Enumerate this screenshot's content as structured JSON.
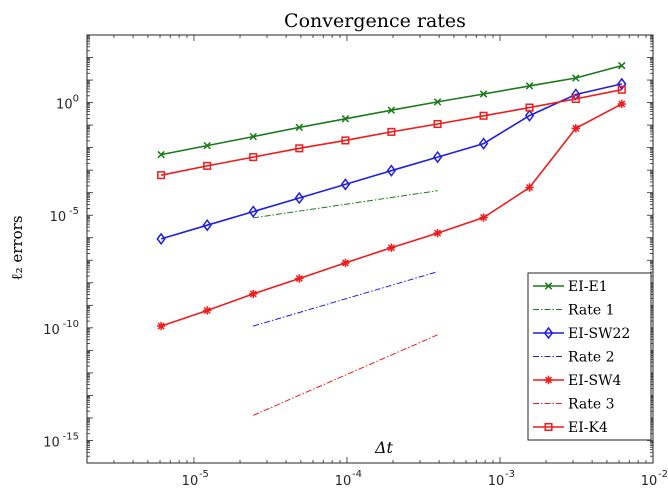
{
  "chart_data": {
    "type": "line",
    "title": "Convergence rates",
    "xlabel": "Δt",
    "ylabel": "ℓ₂ errors",
    "x_scale": "log",
    "y_scale": "log",
    "xlim": [
      2e-06,
      0.01
    ],
    "ylim": [
      1e-16,
      1000.0
    ],
    "x_ticks": [
      {
        "value": 1e-05,
        "base": "10",
        "exp": "-5"
      },
      {
        "value": 0.0001,
        "base": "10",
        "exp": "-4"
      },
      {
        "value": 0.001,
        "base": "10",
        "exp": "-3"
      },
      {
        "value": 0.01,
        "base": "10",
        "exp": "-2"
      }
    ],
    "y_ticks": [
      {
        "value": 1,
        "base": "10",
        "exp": "0"
      },
      {
        "value": 1e-05,
        "base": "10",
        "exp": "-5"
      },
      {
        "value": 1e-10,
        "base": "10",
        "exp": "-10"
      },
      {
        "value": 1e-15,
        "base": "10",
        "exp": "-15"
      }
    ],
    "grid": false,
    "legend_position": "bottom-right",
    "series": [
      {
        "name": "EI-E1",
        "color": "#1a7a1a",
        "marker": "x",
        "style": "solid",
        "x": [
          6.1e-06,
          1.22e-05,
          2.44e-05,
          4.88e-05,
          9.77e-05,
          0.000195,
          0.000391,
          0.000781,
          0.00156,
          0.00313,
          0.00625
        ],
        "y": [
          0.0049,
          0.0123,
          0.0309,
          0.0794,
          0.191,
          0.457,
          1.07,
          2.4,
          5.5,
          12.3,
          43.7
        ]
      },
      {
        "name": "Rate 1",
        "color": "#1a7a1a",
        "marker": "none",
        "style": "dashdot",
        "x": [
          2.44e-05,
          0.000391
        ],
        "y": [
          7.6e-06,
          0.000123
        ]
      },
      {
        "name": "EI-SW22",
        "color": "#1f1fdc",
        "marker": "diamond",
        "style": "solid",
        "x": [
          6.1e-06,
          1.22e-05,
          2.44e-05,
          4.88e-05,
          9.77e-05,
          0.000195,
          0.000391,
          0.000781,
          0.00156,
          0.00313,
          0.00625
        ],
        "y": [
          8.9e-07,
          3.6e-06,
          1.45e-05,
          5.8e-05,
          0.000234,
          0.00095,
          0.0038,
          0.0151,
          0.263,
          2.29,
          6.76
        ]
      },
      {
        "name": "Rate 2",
        "color": "#1f1fdc",
        "marker": "none",
        "style": "dashdot",
        "x": [
          2.44e-05,
          0.000391
        ],
        "y": [
          1.2e-10,
          3.1e-08
        ]
      },
      {
        "name": "EI-SW4",
        "color": "#ee1c1c",
        "marker": "star",
        "style": "solid",
        "x": [
          6.1e-06,
          1.22e-05,
          2.44e-05,
          4.88e-05,
          9.77e-05,
          0.000195,
          0.000391,
          0.000781,
          0.00156,
          0.00313,
          0.00625
        ],
        "y": [
          1.2e-10,
          5.9e-10,
          3.2e-09,
          1.55e-08,
          7.6e-08,
          3.6e-07,
          1.6e-06,
          7.9e-06,
          0.00017,
          0.072,
          0.87
        ]
      },
      {
        "name": "Rate 3",
        "color": "#ee1c1c",
        "marker": "none",
        "style": "dashdot",
        "x": [
          2.44e-05,
          0.000391
        ],
        "y": [
          1.3e-14,
          4.9e-11
        ]
      },
      {
        "name": "EI-K4",
        "color": "#ee1c1c",
        "marker": "square",
        "style": "solid",
        "x": [
          6.1e-06,
          1.22e-05,
          2.44e-05,
          4.88e-05,
          9.77e-05,
          0.000195,
          0.000391,
          0.000781,
          0.00156,
          0.00313,
          0.00625
        ],
        "y": [
          0.0006,
          0.00155,
          0.0038,
          0.0093,
          0.0209,
          0.0501,
          0.112,
          0.26,
          0.6,
          1.45,
          3.72
        ]
      }
    ]
  }
}
